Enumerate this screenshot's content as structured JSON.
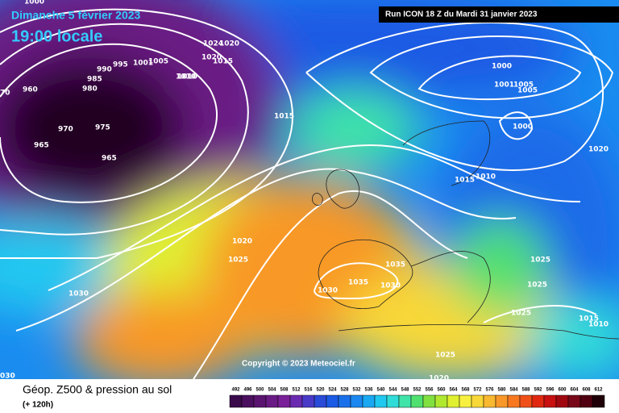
{
  "header": {
    "date": "Dimanche 5 février 2023",
    "time": "19:00 locale",
    "run": "Run ICON 18 Z du Mardi 31 janvier 2023"
  },
  "copyright": "Copyright © 2023 Meteociel.fr",
  "footer": {
    "title": "Géop. Z500 & pression au sol",
    "step": "(+ 120h)"
  },
  "isobar_labels": [
    "1000",
    "1010",
    "1024",
    "1020",
    "1020",
    "1015",
    "995",
    "1001",
    "1005",
    "990",
    "985",
    "980",
    "960",
    "70",
    "1010",
    "970",
    "975",
    "965",
    "965",
    "1015",
    "1000",
    "1001",
    "1005",
    "1005",
    "1000",
    "1020",
    "1015",
    "1010",
    "1020",
    "1025",
    "1035",
    "1030",
    "1035",
    "1030",
    "1030",
    "1025",
    "1025",
    "1025",
    "1015",
    "1010",
    "1025",
    "1020",
    "030"
  ],
  "colorbar": {
    "values": [
      492,
      496,
      500,
      504,
      508,
      512,
      516,
      520,
      524,
      528,
      532,
      536,
      540,
      544,
      548,
      552,
      556,
      560,
      564,
      568,
      572,
      576,
      580,
      584,
      588,
      592,
      596,
      600,
      604,
      608,
      612
    ],
    "colors": [
      "#3a0a4a",
      "#4a0f5e",
      "#5a1470",
      "#6a1a84",
      "#7a2098",
      "#6a2ab0",
      "#4a3ac8",
      "#2a4ad8",
      "#1a5ae4",
      "#1a70ea",
      "#1a88f0",
      "#1aa8f2",
      "#20c8f0",
      "#30dcd8",
      "#40e4a8",
      "#50e070",
      "#80e040",
      "#b0e830",
      "#e0f030",
      "#f8f040",
      "#f8d838",
      "#f8b830",
      "#f89828",
      "#f87820",
      "#f05018",
      "#e02810",
      "#c81010",
      "#a00810",
      "#780818",
      "#500010",
      "#200008"
    ]
  }
}
